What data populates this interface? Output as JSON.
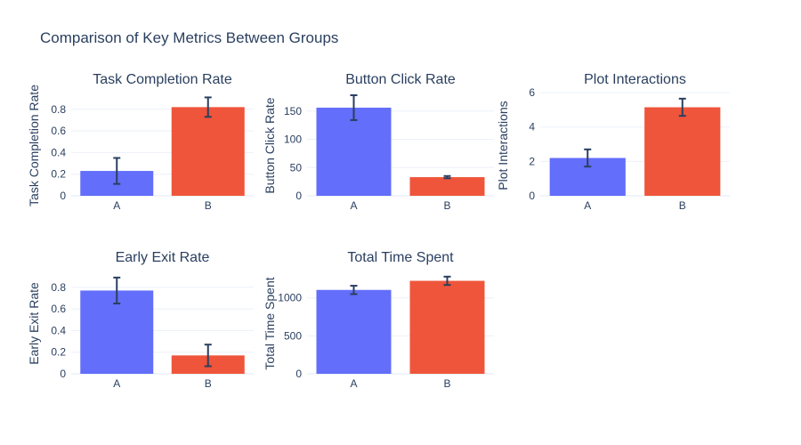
{
  "title": "Comparison of Key Metrics Between Groups",
  "colors": {
    "A": "#636efa",
    "B": "#ef553b",
    "error_bar": "#2a3f5f",
    "grid": "#ebf0f8",
    "text": "#2a3f5f"
  },
  "chart_data": [
    {
      "type": "bar",
      "title": "Task Completion Rate",
      "ylabel": "Task Completion Rate",
      "categories": [
        "A",
        "B"
      ],
      "values": [
        0.23,
        0.82
      ],
      "error": [
        0.12,
        0.09
      ],
      "ylim": [
        0,
        0.93
      ],
      "yticks": [
        0,
        0.2,
        0.4,
        0.6,
        0.8
      ],
      "ytick_labels": [
        "0",
        "0.2",
        "0.4",
        "0.6",
        "0.8"
      ],
      "grid": true
    },
    {
      "type": "bar",
      "title": "Button Click Rate",
      "ylabel": "Button Click Rate",
      "categories": [
        "A",
        "B"
      ],
      "values": [
        156,
        33
      ],
      "error": [
        22,
        2
      ],
      "ylim": [
        0,
        178
      ],
      "yticks": [
        0,
        50,
        100,
        150
      ],
      "ytick_labels": [
        "0",
        "50",
        "100",
        "150"
      ],
      "grid": true
    },
    {
      "type": "bar",
      "title": "Plot Interactions",
      "ylabel": "Plot Interactions",
      "categories": [
        "A",
        "B"
      ],
      "values": [
        2.2,
        5.15
      ],
      "error": [
        0.5,
        0.5
      ],
      "ylim": [
        0,
        5.85
      ],
      "yticks": [
        0,
        2,
        4,
        6
      ],
      "ytick_labels": [
        "0",
        "2",
        "4",
        "6"
      ],
      "grid": true
    },
    {
      "type": "bar",
      "title": "Early Exit Rate",
      "ylabel": "Early Exit Rate",
      "categories": [
        "A",
        "B"
      ],
      "values": [
        0.77,
        0.17
      ],
      "error": [
        0.12,
        0.1
      ],
      "ylim": [
        0,
        0.93
      ],
      "yticks": [
        0,
        0.2,
        0.4,
        0.6,
        0.8
      ],
      "ytick_labels": [
        "0",
        "0.2",
        "0.4",
        "0.6",
        "0.8"
      ],
      "grid": true
    },
    {
      "type": "bar",
      "title": "Total Time Spent",
      "ylabel": "Total Time Spent",
      "categories": [
        "A",
        "B"
      ],
      "values": [
        1105,
        1225
      ],
      "error": [
        55,
        55
      ],
      "ylim": [
        0,
        1325
      ],
      "yticks": [
        0,
        500,
        1000
      ],
      "ytick_labels": [
        "0",
        "500",
        "1000"
      ],
      "grid": true
    }
  ]
}
